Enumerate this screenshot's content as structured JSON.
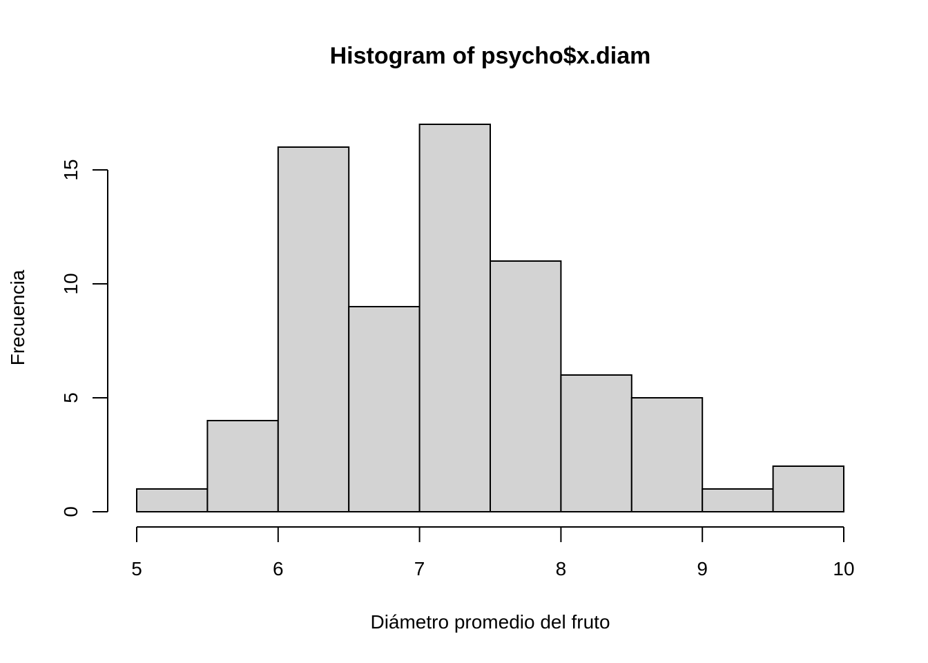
{
  "chart_data": {
    "type": "bar",
    "title": "Histogram of psycho$x.diam",
    "xlabel": "Diámetro promedio del fruto",
    "ylabel": "Frecuencia",
    "bin_edges": [
      5,
      5.5,
      6,
      6.5,
      7,
      7.5,
      8,
      8.5,
      9,
      9.5,
      10
    ],
    "values": [
      1,
      4,
      16,
      9,
      17,
      11,
      6,
      5,
      1,
      2
    ],
    "xlim": [
      5,
      10
    ],
    "ylim": [
      0,
      17
    ],
    "x_ticks": [
      5,
      6,
      7,
      8,
      9,
      10
    ],
    "x_tick_labels": [
      "5",
      "6",
      "7",
      "8",
      "9",
      "10"
    ],
    "y_ticks": [
      0,
      5,
      10,
      15
    ],
    "y_tick_labels": [
      "0",
      "5",
      "10",
      "15"
    ],
    "bar_color": "#d3d3d3",
    "grid": false
  }
}
